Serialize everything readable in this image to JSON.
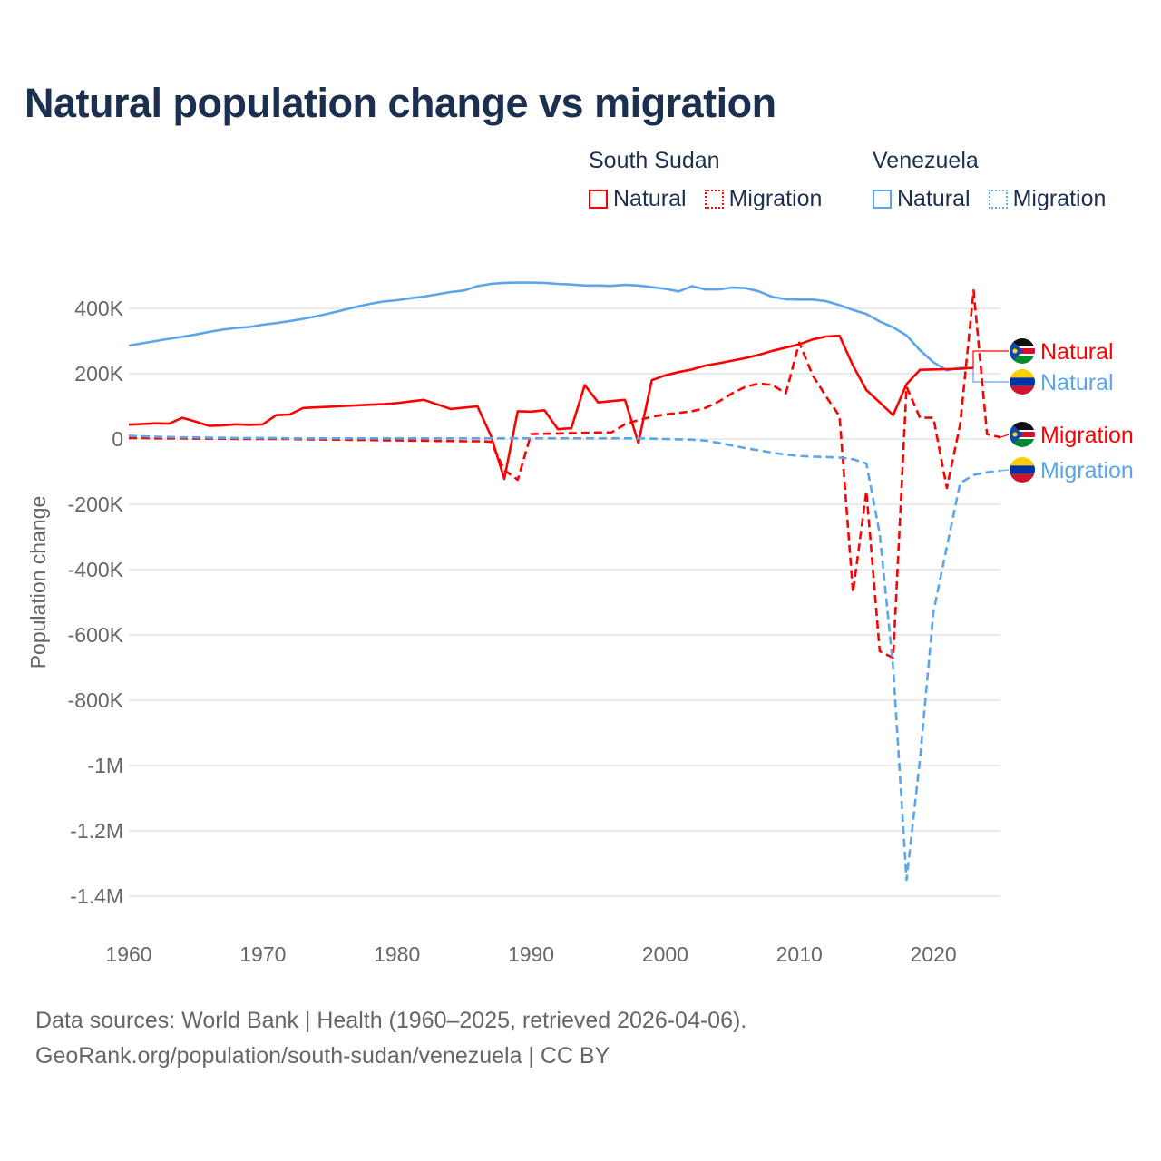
{
  "title": "Natural population change vs migration",
  "legend": {
    "groups": [
      {
        "name": "South Sudan",
        "color": "#ff0000",
        "items": [
          "Natural",
          "Migration"
        ]
      },
      {
        "name": "Venezuela",
        "color": "#5aa5ec",
        "items": [
          "Natural",
          "Migration"
        ]
      }
    ]
  },
  "footer": {
    "line1": "Data sources: World Bank | Health (1960–2025, retrieved 2026-04-06).",
    "line2": "GeoRank.org/population/south-sudan/venezuela | CC BY"
  },
  "chart_data": {
    "type": "line",
    "title": "Natural population change vs migration",
    "xlabel": "",
    "ylabel": "Population change",
    "xlim": [
      1960,
      2025
    ],
    "ylim": [
      -1400000,
      450000
    ],
    "x_ticks": [
      1960,
      1970,
      1980,
      1990,
      2000,
      2010,
      2020
    ],
    "x_tick_labels": [
      "1960",
      "1970",
      "1980",
      "1990",
      "2000",
      "2010",
      "2020"
    ],
    "y_ticks": [
      400000,
      200000,
      0,
      -200000,
      -400000,
      -600000,
      -800000,
      -1000000,
      -1200000,
      -1400000
    ],
    "y_tick_labels": [
      "400K",
      "200K",
      "0",
      "-200K",
      "-400K",
      "-600K",
      "-800K",
      "-1M",
      "-1.2M",
      "-1.4M"
    ],
    "grid": true,
    "legend_position": "top-right",
    "series": [
      {
        "name": "Venezuela Natural",
        "label": "Natural",
        "country": "Venezuela",
        "color": "#5aa5ec",
        "dashed": false,
        "start": 1960,
        "values": [
          286000,
          293000,
          300000,
          307000,
          313000,
          320000,
          328000,
          335000,
          340000,
          343000,
          350000,
          355000,
          361000,
          368000,
          376000,
          385000,
          395000,
          405000,
          414000,
          421000,
          425000,
          431000,
          436000,
          443000,
          450000,
          455000,
          468000,
          475000,
          478000,
          479000,
          479000,
          478000,
          475000,
          473000,
          470000,
          470000,
          469000,
          472000,
          470000,
          465000,
          460000,
          452000,
          468000,
          458000,
          458000,
          464000,
          462000,
          452000,
          435000,
          428000,
          427000,
          427000,
          422000,
          410000,
          395000,
          383000,
          360000,
          342000,
          317000,
          272000,
          235000,
          210000,
          218000,
          217000
        ]
      },
      {
        "name": "South Sudan Natural",
        "label": "Natural",
        "country": "South Sudan",
        "color": "#ff0000",
        "dashed": false,
        "start": 1960,
        "values": [
          44000,
          46000,
          48000,
          47000,
          65000,
          53000,
          40000,
          42000,
          45000,
          43000,
          45000,
          73000,
          75000,
          95000,
          97000,
          99000,
          101000,
          103000,
          105000,
          107000,
          110000,
          115000,
          120000,
          106000,
          92000,
          96000,
          100000,
          10000,
          -122000,
          85000,
          84000,
          88000,
          30000,
          33000,
          165000,
          112000,
          116000,
          120000,
          -12000,
          180000,
          195000,
          205000,
          213000,
          225000,
          232000,
          240000,
          248000,
          258000,
          270000,
          280000,
          290000,
          305000,
          314000,
          316000,
          225000,
          150000,
          112000,
          73000,
          168000,
          212000,
          213000,
          214000,
          215000,
          218000
        ]
      },
      {
        "name": "South Sudan Migration",
        "label": "Migration",
        "country": "South Sudan",
        "color": "#ff0000",
        "dashed": true,
        "start": 1960,
        "values": [
          3000,
          3000,
          2000,
          2000,
          2000,
          1000,
          1000,
          1000,
          0,
          0,
          0,
          0,
          0,
          -1000,
          -1000,
          -2000,
          -2000,
          -3000,
          -3000,
          -4000,
          -4000,
          -5000,
          -5000,
          -6000,
          -6000,
          -7000,
          -7000,
          -8000,
          -95000,
          -125000,
          15000,
          16000,
          17000,
          18000,
          19000,
          20000,
          20000,
          45000,
          58000,
          68000,
          75000,
          80000,
          85000,
          95000,
          115000,
          140000,
          160000,
          170000,
          165000,
          140000,
          295000,
          195000,
          130000,
          70000,
          -470000,
          -160000,
          -650000,
          -670000,
          160000,
          65000,
          65000,
          -150000,
          45000,
          455000,
          15000,
          5000
        ]
      },
      {
        "name": "Venezuela Migration",
        "label": "Migration",
        "country": "Venezuela",
        "color": "#5aa5ec",
        "dashed": true,
        "start": 1960,
        "values": [
          10000,
          8000,
          7000,
          6000,
          5000,
          5000,
          4000,
          4000,
          3000,
          3000,
          3000,
          3000,
          2000,
          2000,
          2000,
          2000,
          2000,
          2000,
          2000,
          2000,
          2000,
          2000,
          2000,
          2000,
          2000,
          2000,
          2000,
          2000,
          2000,
          2000,
          2000,
          2000,
          2000,
          2000,
          2000,
          2000,
          2000,
          2000,
          2000,
          1000,
          0,
          -1000,
          -2000,
          -5000,
          -12000,
          -20000,
          -28000,
          -35000,
          -42000,
          -48000,
          -52000,
          -54000,
          -55000,
          -57000,
          -62000,
          -75000,
          -290000,
          -700000,
          -1350000,
          -980000,
          -530000,
          -330000,
          -135000,
          -110000,
          -102000,
          -97000
        ]
      }
    ]
  }
}
